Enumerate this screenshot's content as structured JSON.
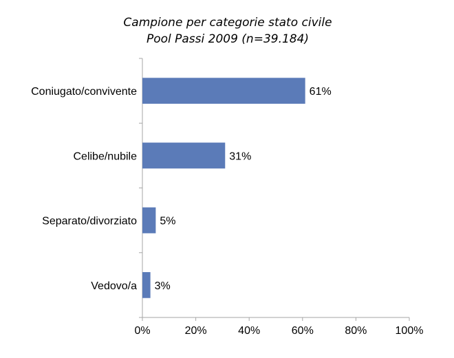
{
  "colors": {
    "bar": "#5b7bb8",
    "axis": "#a6a6a6"
  },
  "chart_data": {
    "type": "bar",
    "orientation": "horizontal",
    "title": "Campione per categorie stato civile",
    "subtitle": "Pool Passi 2009 (n=39.184)",
    "categories": [
      "Coniugato/convivente",
      "Celibe/nubile",
      "Separato/divorziato",
      "Vedovo/a"
    ],
    "values": [
      61,
      31,
      5,
      3
    ],
    "data_labels": [
      "61%",
      "31%",
      "5%",
      "3%"
    ],
    "xlim": [
      0,
      100
    ],
    "x_ticks": [
      0,
      20,
      40,
      60,
      80,
      100
    ],
    "x_tick_labels": [
      "0%",
      "20%",
      "40%",
      "60%",
      "80%",
      "100%"
    ],
    "grid": false,
    "legend": "none"
  }
}
